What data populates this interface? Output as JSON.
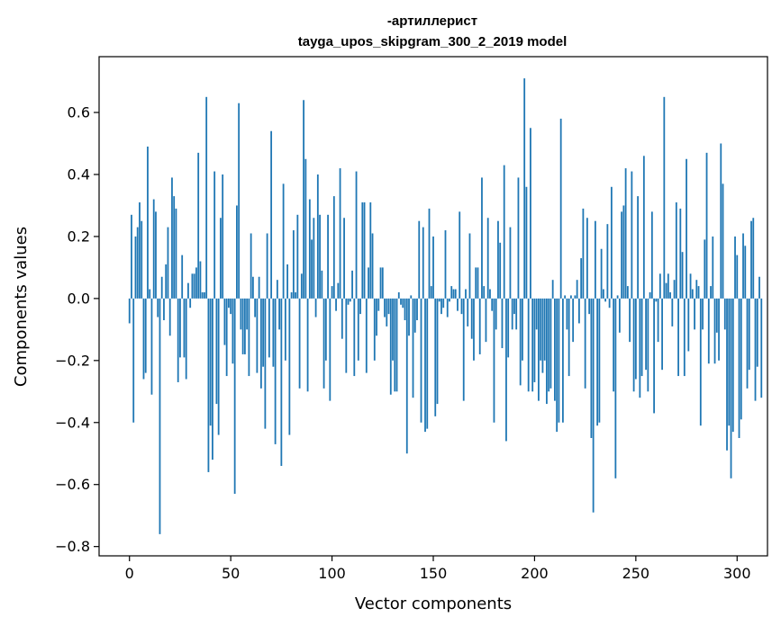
{
  "chart_data": {
    "type": "bar",
    "title": "-артиллерист",
    "subtitle": "tayga_upos_skipgram_300_2_2019 model",
    "xlabel": "Vector components",
    "ylabel": "Components values",
    "xlim": [
      -15,
      315
    ],
    "ylim": [
      -0.83,
      0.78
    ],
    "xticks": [
      0,
      50,
      100,
      150,
      200,
      250,
      300
    ],
    "yticks": [
      -0.8,
      -0.6,
      -0.4,
      -0.2,
      0.0,
      0.2,
      0.4,
      0.6
    ],
    "ytick_labels": [
      "−0.8",
      "−0.6",
      "−0.4",
      "−0.2",
      "0.0",
      "0.2",
      "0.4",
      "0.6"
    ],
    "bar_color": "#1f77b4",
    "grid": false,
    "values": [
      -0.08,
      0.27,
      -0.4,
      0.2,
      0.23,
      0.31,
      0.25,
      -0.26,
      -0.24,
      0.49,
      0.03,
      -0.31,
      0.32,
      0.28,
      -0.06,
      -0.76,
      0.07,
      -0.07,
      0.11,
      0.23,
      -0.12,
      0.39,
      0.33,
      0.29,
      -0.27,
      -0.19,
      0.14,
      -0.19,
      -0.26,
      0.05,
      -0.03,
      0.08,
      0.08,
      0.1,
      0.47,
      0.12,
      0.02,
      0.02,
      0.65,
      -0.56,
      -0.41,
      -0.52,
      0.41,
      -0.34,
      -0.44,
      0.26,
      0.4,
      -0.15,
      -0.25,
      -0.03,
      -0.05,
      -0.21,
      -0.63,
      0.3,
      0.63,
      -0.1,
      -0.18,
      -0.18,
      -0.1,
      -0.25,
      0.21,
      0.07,
      -0.06,
      -0.24,
      0.07,
      -0.29,
      -0.22,
      -0.42,
      0.21,
      -0.19,
      0.54,
      -0.22,
      -0.47,
      0.06,
      -0.1,
      -0.54,
      0.37,
      -0.2,
      0.11,
      -0.44,
      0.02,
      0.22,
      0.02,
      0.27,
      -0.29,
      0.08,
      0.64,
      0.45,
      -0.3,
      0.32,
      0.19,
      0.26,
      -0.06,
      0.4,
      0.27,
      0.09,
      -0.29,
      -0.2,
      0.27,
      -0.33,
      0.04,
      0.33,
      -0.04,
      0.05,
      0.42,
      -0.13,
      0.26,
      -0.24,
      -0.02,
      -0.01,
      0.09,
      -0.25,
      0.41,
      -0.2,
      -0.05,
      0.31,
      0.31,
      -0.24,
      0.1,
      0.31,
      0.21,
      -0.2,
      -0.12,
      -0.04,
      0.1,
      0.1,
      -0.06,
      -0.09,
      -0.05,
      -0.31,
      -0.2,
      -0.3,
      -0.3,
      0.02,
      -0.02,
      -0.03,
      -0.07,
      -0.5,
      -0.12,
      0.01,
      -0.32,
      -0.11,
      -0.07,
      0.25,
      -0.4,
      0.23,
      -0.43,
      -0.42,
      0.29,
      0.04,
      0.2,
      -0.38,
      -0.34,
      -0.01,
      -0.05,
      -0.03,
      0.22,
      -0.06,
      -0.01,
      0.04,
      0.03,
      0.03,
      -0.04,
      0.28,
      -0.05,
      -0.33,
      0.03,
      -0.09,
      0.21,
      -0.13,
      -0.2,
      0.1,
      0.1,
      -0.18,
      0.39,
      0.04,
      -0.14,
      0.26,
      0.03,
      -0.04,
      -0.4,
      -0.1,
      0.25,
      0.18,
      -0.16,
      0.43,
      -0.46,
      -0.19,
      0.23,
      -0.1,
      -0.05,
      -0.1,
      0.39,
      -0.28,
      -0.2,
      0.71,
      0.36,
      -0.3,
      0.55,
      -0.3,
      -0.27,
      -0.1,
      -0.33,
      -0.2,
      -0.24,
      -0.2,
      -0.34,
      -0.3,
      -0.29,
      0.06,
      -0.33,
      -0.43,
      -0.4,
      0.58,
      -0.4,
      0.01,
      -0.1,
      -0.25,
      0.01,
      -0.14,
      0.01,
      0.06,
      -0.08,
      0.13,
      0.29,
      -0.29,
      0.26,
      -0.05,
      -0.45,
      -0.69,
      0.25,
      -0.41,
      -0.4,
      0.16,
      0.03,
      -0.01,
      0.24,
      -0.03,
      0.36,
      -0.3,
      -0.58,
      0.01,
      -0.11,
      0.28,
      0.3,
      0.42,
      0.04,
      -0.14,
      0.41,
      -0.3,
      -0.26,
      0.33,
      -0.32,
      -0.25,
      0.46,
      -0.23,
      -0.3,
      0.02,
      0.28,
      -0.37,
      -0.01,
      -0.14,
      0.08,
      -0.23,
      0.65,
      0.05,
      0.08,
      0.02,
      -0.09,
      0.06,
      0.31,
      -0.25,
      0.29,
      0.15,
      -0.25,
      0.45,
      -0.17,
      0.08,
      0.03,
      -0.1,
      0.06,
      0.04,
      -0.41,
      -0.1,
      0.19,
      0.47,
      -0.21,
      0.04,
      0.2,
      -0.21,
      -0.11,
      -0.2,
      0.5,
      0.37,
      -0.1,
      -0.49,
      -0.41,
      -0.58,
      -0.43,
      0.2,
      0.14,
      -0.45,
      -0.39,
      0.21,
      0.17,
      -0.29,
      -0.23,
      0.25,
      0.26,
      -0.33,
      -0.22,
      0.07,
      -0.32
    ]
  }
}
